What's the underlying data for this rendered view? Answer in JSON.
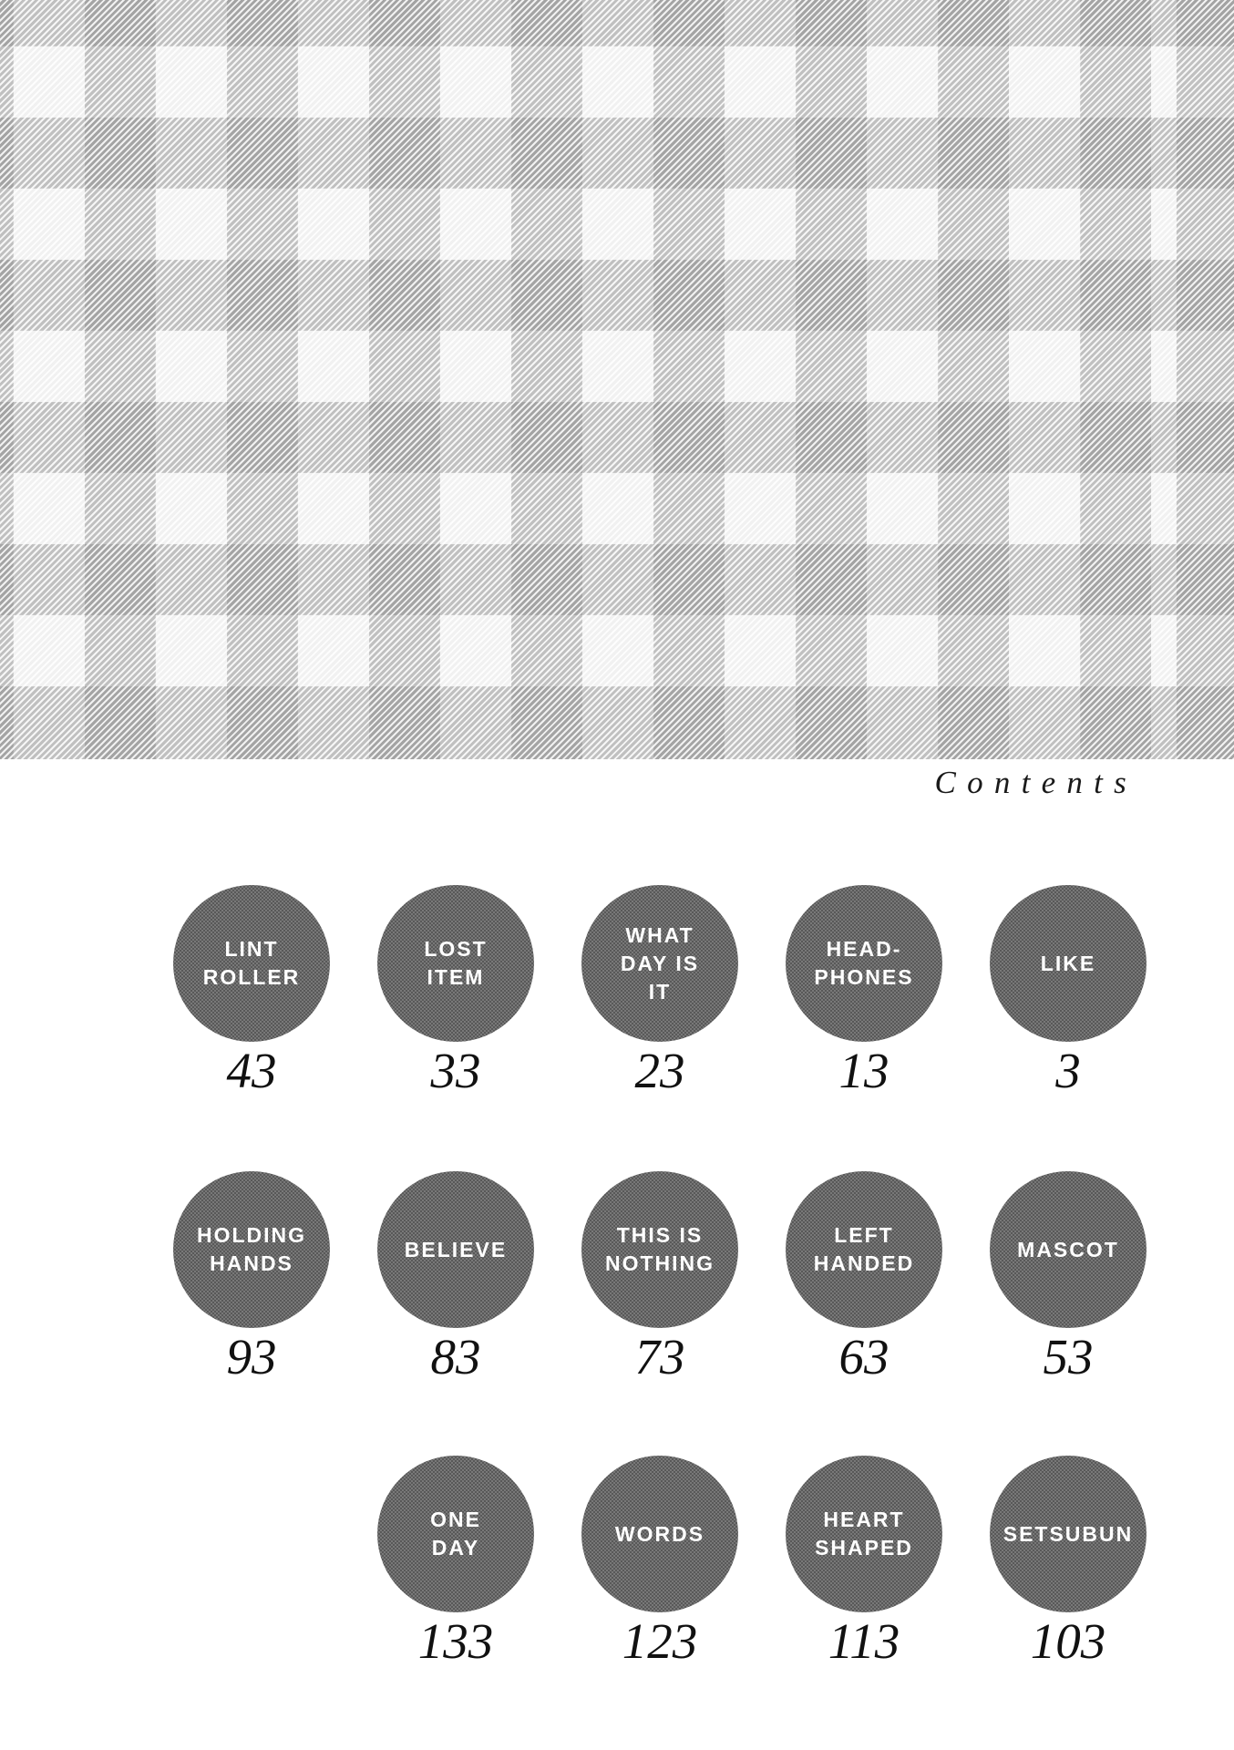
{
  "heading": {
    "title": "Contents"
  },
  "colors": {
    "background": "#ffffff",
    "pattern_light": "#f1f1f1",
    "pattern_band": "#7d7d7d",
    "circle_fill": "#6e6e6e",
    "circle_title_text": "#ffffff",
    "page_number_text": "#111111",
    "heading_text": "#1a1a1a"
  },
  "toc": {
    "rows": [
      {
        "chapters": [
          {
            "title": "LINT\nROLLER",
            "page": "43"
          },
          {
            "title": "LOST\nITEM",
            "page": "33"
          },
          {
            "title": "WHAT\nDAY IS\nIT",
            "page": "23"
          },
          {
            "title": "HEAD-\nPHONES",
            "page": "13"
          },
          {
            "title": "LIKE",
            "page": "3"
          }
        ]
      },
      {
        "chapters": [
          {
            "title": "HOLDING\nHANDS",
            "page": "93"
          },
          {
            "title": "BELIEVE",
            "page": "83"
          },
          {
            "title": "THIS IS\nNOTHING",
            "page": "73"
          },
          {
            "title": "LEFT\nHANDED",
            "page": "63"
          },
          {
            "title": "MASCOT",
            "page": "53"
          }
        ]
      },
      {
        "chapters": [
          {
            "title": "ONE\nDAY",
            "page": "133"
          },
          {
            "title": "WORDS",
            "page": "123"
          },
          {
            "title": "HEART\nSHAPED",
            "page": "113"
          },
          {
            "title": "SETSUBUN",
            "page": "103"
          }
        ]
      }
    ]
  }
}
